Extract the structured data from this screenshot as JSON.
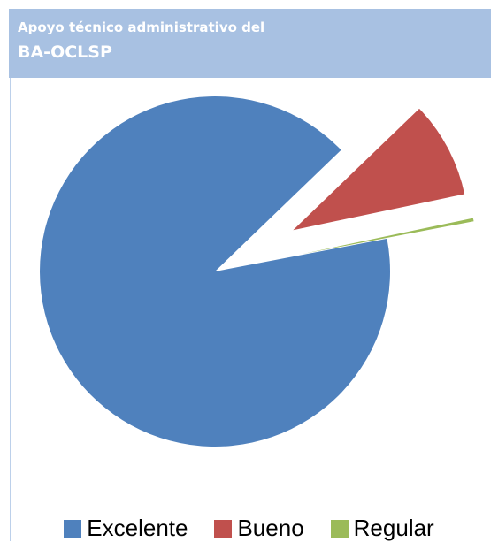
{
  "chart_data": {
    "type": "pie",
    "title": [
      "Apoyo técnico administrativo del",
      "BA-OCLSP"
    ],
    "categories": [
      "Excelente",
      "Bueno",
      "Regular"
    ],
    "values": [
      90.8,
      8.9,
      0.3
    ],
    "colors": [
      "#4f81bd",
      "#c0504d",
      "#9bbb59"
    ],
    "legend": "bottom"
  }
}
